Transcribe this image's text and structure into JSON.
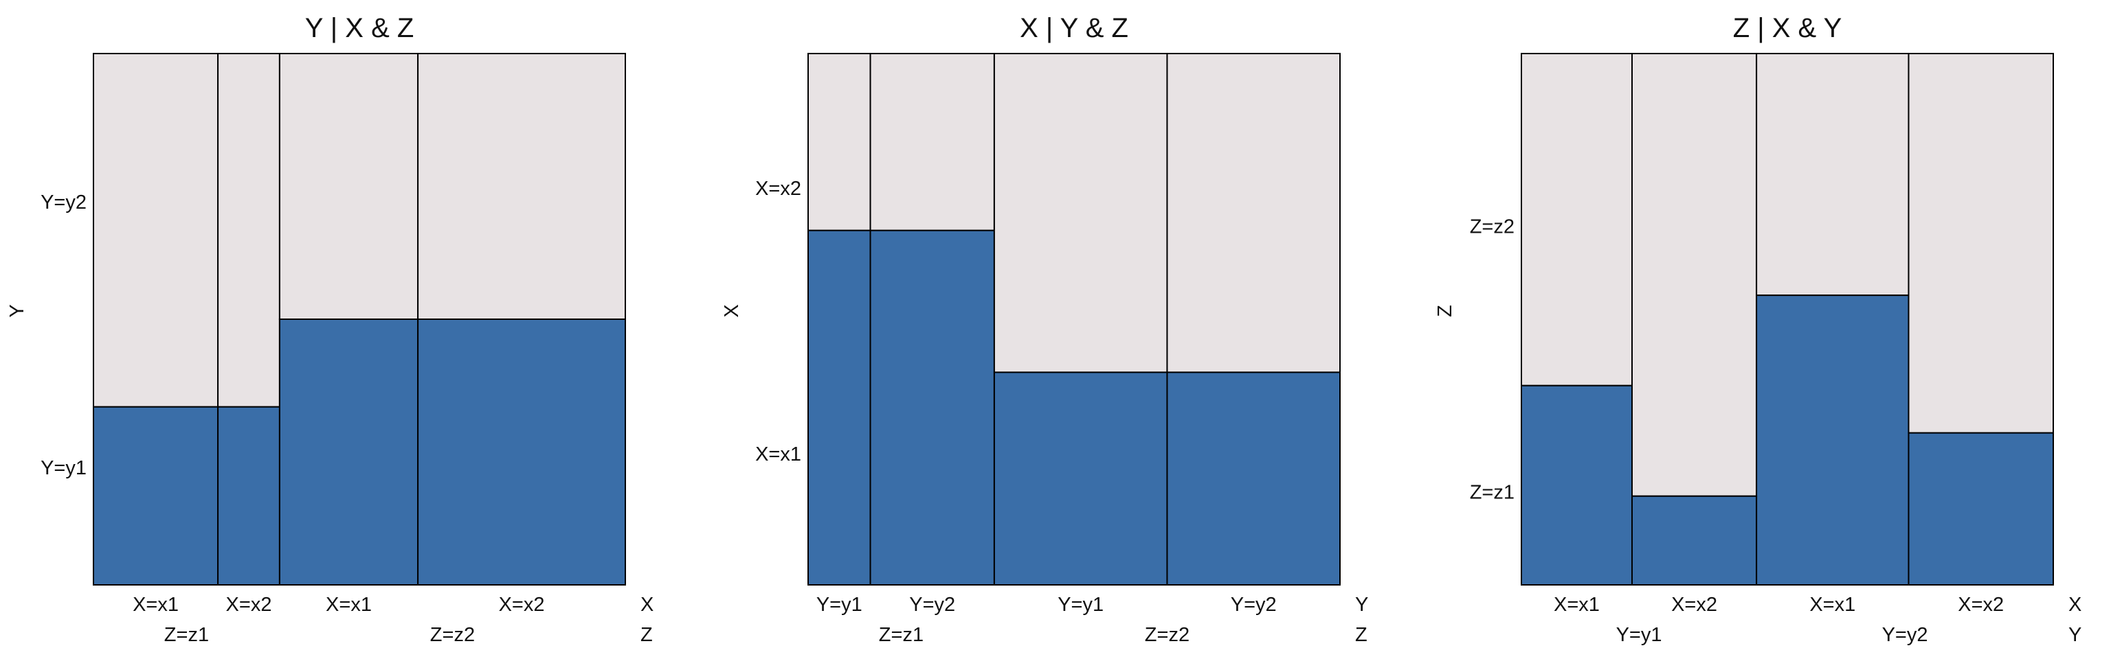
{
  "colors": {
    "low": "#3A6EA8",
    "high": "#E8E3E4",
    "border": "#000000"
  },
  "chart_data": [
    {
      "type": "mosaic",
      "title": "Y | X & Z",
      "xvars": [
        "X",
        "Z"
      ],
      "yvar": "Y",
      "ylevels": [
        "Y=y1",
        "Y=y2"
      ],
      "outer_groups": [
        {
          "label": "Z=z1",
          "inner": [
            {
              "label": "X=x1",
              "weight": 0.234,
              "p_low": 0.335
            },
            {
              "label": "X=x2",
              "weight": 0.116,
              "p_low": 0.335
            }
          ]
        },
        {
          "label": "Z=z2",
          "inner": [
            {
              "label": "X=x1",
              "weight": 0.26,
              "p_low": 0.5
            },
            {
              "label": "X=x2",
              "weight": 0.39,
              "p_low": 0.5
            }
          ]
        }
      ]
    },
    {
      "type": "mosaic",
      "title": "X | Y & Z",
      "xvars": [
        "Y",
        "Z"
      ],
      "yvar": "X",
      "ylevels": [
        "X=x1",
        "X=x2"
      ],
      "outer_groups": [
        {
          "label": "Z=z1",
          "inner": [
            {
              "label": "Y=y1",
              "weight": 0.117,
              "p_low": 0.667
            },
            {
              "label": "Y=y2",
              "weight": 0.233,
              "p_low": 0.667
            }
          ]
        },
        {
          "label": "Z=z2",
          "inner": [
            {
              "label": "Y=y1",
              "weight": 0.325,
              "p_low": 0.4
            },
            {
              "label": "Y=y2",
              "weight": 0.325,
              "p_low": 0.4
            }
          ]
        }
      ]
    },
    {
      "type": "mosaic",
      "title": "Z | X & Y",
      "xvars": [
        "X",
        "Y"
      ],
      "yvar": "Z",
      "ylevels": [
        "Z=z1",
        "Z=z2"
      ],
      "outer_groups": [
        {
          "label": "Y=y1",
          "inner": [
            {
              "label": "X=x1",
              "weight": 0.208,
              "p_low": 0.375
            },
            {
              "label": "X=x2",
              "weight": 0.234,
              "p_low": 0.167
            }
          ]
        },
        {
          "label": "Y=y2",
          "inner": [
            {
              "label": "X=x1",
              "weight": 0.286,
              "p_low": 0.545
            },
            {
              "label": "X=x2",
              "weight": 0.272,
              "p_low": 0.286
            }
          ]
        }
      ]
    }
  ]
}
